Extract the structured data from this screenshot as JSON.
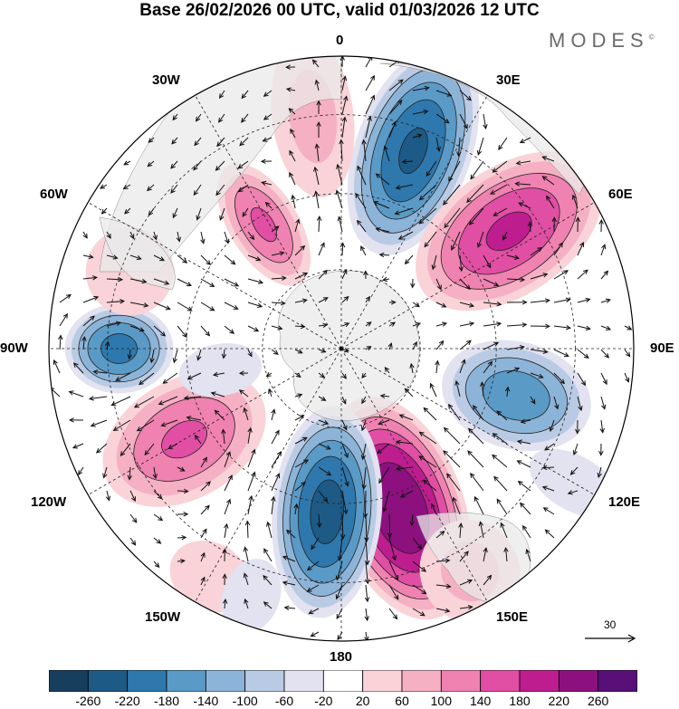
{
  "title": "Base 26/02/2026 00 UTC, valid 01/03/2026 12 UTC",
  "brand": "MODES",
  "brand_mark": "©",
  "longitude_labels": {
    "lon_0": "0",
    "lon_30e": "30E",
    "lon_60e": "60E",
    "lon_90e": "90E",
    "lon_120e": "120E",
    "lon_150e": "150E",
    "lon_180": "180",
    "lon_150w": "150W",
    "lon_120w": "120W",
    "lon_90w": "90W",
    "lon_60w": "60W",
    "lon_30w": "30W"
  },
  "reference_vector": {
    "label": "30"
  },
  "colorbar": {
    "labels": [
      "-260",
      "-220",
      "-180",
      "-140",
      "-100",
      "-60",
      "-20",
      "20",
      "60",
      "100",
      "140",
      "180",
      "220",
      "260"
    ],
    "colors": [
      "#183e5e",
      "#1d5a86",
      "#2e78ad",
      "#5a9ac6",
      "#8cb4d8",
      "#b9cbe4",
      "#e2e2f0",
      "#ffffff",
      "#f9d3d8",
      "#f5b0c3",
      "#ef82b0",
      "#e04fa3",
      "#be1d8f",
      "#8c117f",
      "#581078"
    ]
  },
  "anomaly_centers": [
    {
      "sign": "negative",
      "amp": 230,
      "bearing": 20,
      "r": 0.72,
      "sx": 0.18,
      "sy": 0.34,
      "rot": 20
    },
    {
      "sign": "positive",
      "amp": 190,
      "bearing": 55,
      "r": 0.7,
      "sx": 0.2,
      "sy": 0.33,
      "rot": 55
    },
    {
      "sign": "negative",
      "amp": 170,
      "bearing": 105,
      "r": 0.62,
      "sx": 0.17,
      "sy": 0.24,
      "rot": 105
    },
    {
      "sign": "positive",
      "amp": 260,
      "bearing": 160,
      "r": 0.58,
      "sx": 0.2,
      "sy": 0.36,
      "rot": 160
    },
    {
      "sign": "negative",
      "amp": 240,
      "bearing": 185,
      "r": 0.56,
      "sx": 0.17,
      "sy": 0.33,
      "rot": 185
    },
    {
      "sign": "positive",
      "amp": 150,
      "bearing": 240,
      "r": 0.62,
      "sx": 0.19,
      "sy": 0.28,
      "rot": 240
    },
    {
      "sign": "negative",
      "amp": 200,
      "bearing": 270,
      "r": 0.76,
      "sx": 0.14,
      "sy": 0.17,
      "rot": 270
    },
    {
      "sign": "positive",
      "amp": 150,
      "bearing": 328,
      "r": 0.5,
      "sx": 0.11,
      "sy": 0.22,
      "rot": 328
    },
    {
      "sign": "positive",
      "amp": 80,
      "bearing": 353,
      "r": 0.8,
      "sx": 0.14,
      "sy": 0.28,
      "rot": 353
    },
    {
      "sign": "positive",
      "amp": 60,
      "bearing": 290,
      "r": 0.77,
      "sx": 0.16,
      "sy": 0.16,
      "rot": 290
    },
    {
      "sign": "positive",
      "amp": 80,
      "bearing": 150,
      "r": 0.88,
      "sx": 0.17,
      "sy": 0.18,
      "rot": 150
    },
    {
      "sign": "positive",
      "amp": 50,
      "bearing": 210,
      "r": 0.9,
      "sx": 0.16,
      "sy": 0.13,
      "rot": 210
    },
    {
      "sign": "negative",
      "amp": 50,
      "bearing": 260,
      "r": 0.42,
      "sx": 0.1,
      "sy": 0.16,
      "rot": 260
    },
    {
      "sign": "negative",
      "amp": 40,
      "bearing": 200,
      "r": 0.9,
      "sx": 0.12,
      "sy": 0.16,
      "rot": 200
    },
    {
      "sign": "negative",
      "amp": 60,
      "bearing": 120,
      "r": 0.92,
      "sx": 0.1,
      "sy": 0.18,
      "rot": 120
    }
  ]
}
